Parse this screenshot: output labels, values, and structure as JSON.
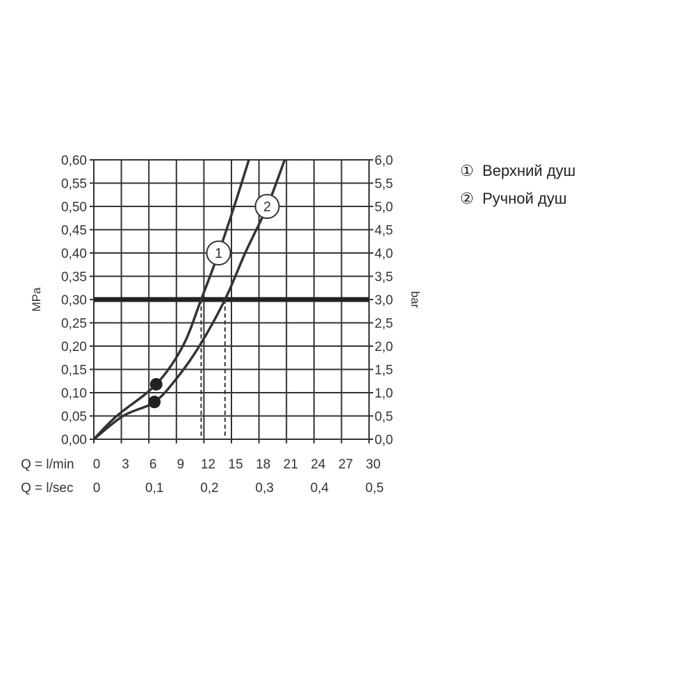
{
  "chart_data": {
    "type": "line",
    "xlabel": "Q = l/min",
    "x2label": "Q = l/sec",
    "ylabel": "MPa",
    "y2label": "bar",
    "xlim": [
      0,
      30
    ],
    "ylim": [
      0,
      0.6
    ],
    "grid": true,
    "x_ticks": [
      "0",
      "3",
      "6",
      "9",
      "12",
      "15",
      "18",
      "21",
      "24",
      "27",
      "30"
    ],
    "x2_ticks": [
      {
        "x": 0,
        "label": "0"
      },
      {
        "x": 6,
        "label": "0,1"
      },
      {
        "x": 12,
        "label": "0,2"
      },
      {
        "x": 18,
        "label": "0,3"
      },
      {
        "x": 24,
        "label": "0,4"
      },
      {
        "x": 30,
        "label": "0,5"
      }
    ],
    "y_ticks": [
      "0,00",
      "0,05",
      "0,10",
      "0,15",
      "0,20",
      "0,25",
      "0,30",
      "0,35",
      "0,40",
      "0,45",
      "0,50",
      "0,55",
      "0,60"
    ],
    "y2_ticks": [
      "0,0",
      "0,5",
      "1,0",
      "1,5",
      "2,0",
      "2,5",
      "3,0",
      "3,5",
      "4,0",
      "4,5",
      "5,0",
      "5,5",
      "6,0"
    ],
    "reference_line_y": 0.3,
    "series": [
      {
        "name": "1",
        "label": "1",
        "label_at": [
          13.6,
          0.4
        ],
        "points": [
          [
            0,
            0
          ],
          [
            2.5,
            0.05
          ],
          [
            6.8,
            0.118
          ],
          [
            9.7,
            0.2
          ],
          [
            11.7,
            0.3
          ],
          [
            13.6,
            0.4
          ],
          [
            15.3,
            0.5
          ],
          [
            16.9,
            0.6
          ]
        ],
        "marker": [
          6.8,
          0.118
        ],
        "crossing_x": 11.7
      },
      {
        "name": "2",
        "label": "2",
        "label_at": [
          18.9,
          0.5
        ],
        "points": [
          [
            0,
            0
          ],
          [
            3.2,
            0.05
          ],
          [
            6.6,
            0.08
          ],
          [
            9.0,
            0.13
          ],
          [
            11.5,
            0.2
          ],
          [
            14.3,
            0.3
          ],
          [
            16.5,
            0.4
          ],
          [
            18.9,
            0.5
          ],
          [
            20.8,
            0.6
          ]
        ],
        "marker": [
          6.6,
          0.08
        ],
        "crossing_x": 14.3
      }
    ]
  },
  "legend": [
    {
      "symbol": "①",
      "text": "Верхний душ"
    },
    {
      "symbol": "②",
      "text": "Ручной душ"
    }
  ]
}
